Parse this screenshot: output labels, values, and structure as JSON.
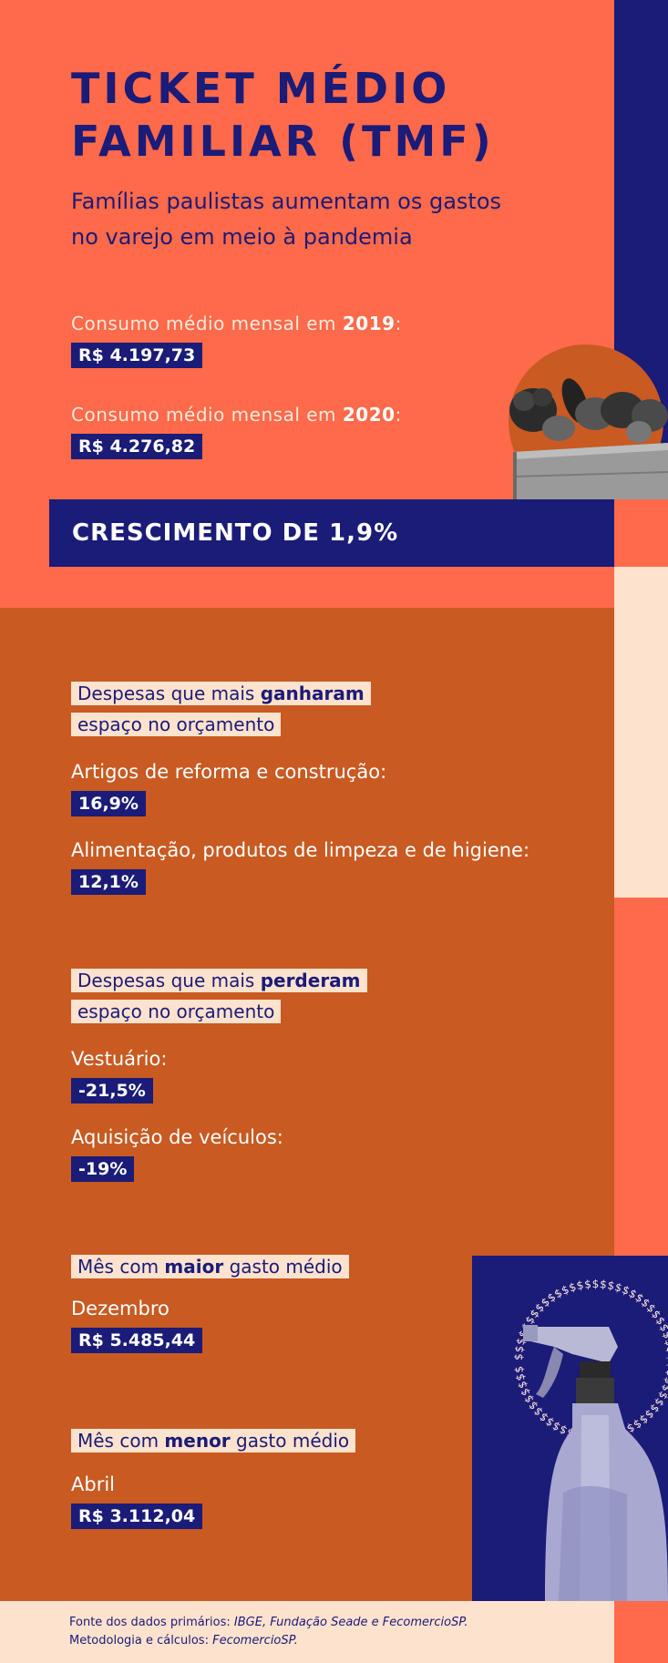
{
  "title_line1": "TICKET MÉDIO",
  "title_line2": "FAMILIAR (TMF)",
  "subtitle_line1": "Famílias paulistas aumentam os gastos",
  "subtitle_line2": "no varejo em meio à pandemia",
  "consumo_2019": {
    "prefix": "Consumo médio mensal em ",
    "year": "2019",
    "suffix": ":",
    "value": "R$ 4.197,73"
  },
  "consumo_2020": {
    "prefix": "Consumo médio mensal em ",
    "year": "2020",
    "suffix": ":",
    "value": "R$ 4.276,82"
  },
  "crescimento": "CRESCIMENTO DE 1,9%",
  "ganharam": {
    "tag_pre": "Despesas que mais ",
    "tag_bold": "ganharam",
    "tag_line2": "espaço no orçamento",
    "items": [
      {
        "label": "Artigos de reforma e construção:",
        "value": "16,9%"
      },
      {
        "label": "Alimentação, produtos de limpeza e de higiene:",
        "value": "12,1%"
      }
    ]
  },
  "perderam": {
    "tag_pre": "Despesas que mais ",
    "tag_bold": "perderam",
    "tag_line2": "espaço no orçamento",
    "items": [
      {
        "label": "Vestuário:",
        "value": "-21,5%"
      },
      {
        "label": "Aquisição de veículos:",
        "value": "-19%"
      }
    ]
  },
  "maior": {
    "tag_pre": "Mês com ",
    "tag_bold": "maior",
    "tag_post": " gasto médio",
    "month": "Dezembro",
    "value": "R$ 5.485,44"
  },
  "menor": {
    "tag_pre": "Mês com ",
    "tag_bold": "menor",
    "tag_post": " gasto médio",
    "month": "Abril",
    "value": "R$ 3.112,04"
  },
  "dollar_ring": "$$$$$$$$$$$$$$$$$$$$$$$$$$$$$$$$$$$$$$$$$$$$$$$$$$$$$$$$$$$$$",
  "footer": {
    "line1_pre": "Fonte dos dados primários: ",
    "line1_italic": "IBGE, Fundação Seade e FecomercioSP.",
    "line2_pre": "Metodologia e cálculos: ",
    "line2_italic": "FecomercioSP."
  },
  "colors": {
    "coral": "#ff6a4a",
    "rust": "#c85a22",
    "navy": "#1b1b78",
    "cream": "#fde2ce"
  },
  "icons": [
    "vegetables-crate-image",
    "spray-bottle-image"
  ]
}
